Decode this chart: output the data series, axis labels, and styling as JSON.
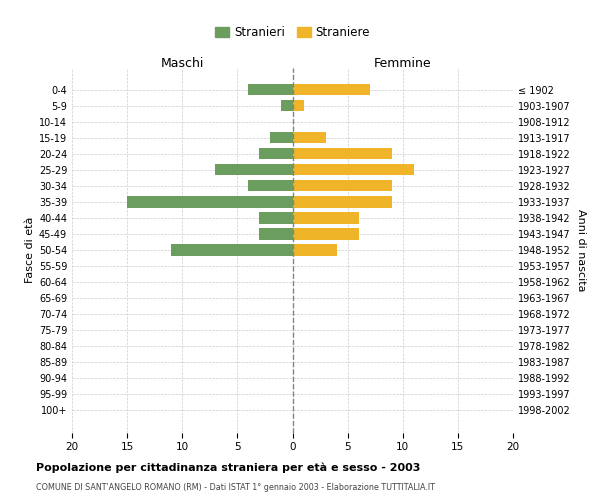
{
  "age_groups": [
    "0-4",
    "5-9",
    "10-14",
    "15-19",
    "20-24",
    "25-29",
    "30-34",
    "35-39",
    "40-44",
    "45-49",
    "50-54",
    "55-59",
    "60-64",
    "65-69",
    "70-74",
    "75-79",
    "80-84",
    "85-89",
    "90-94",
    "95-99",
    "100+"
  ],
  "birth_years": [
    "1998-2002",
    "1993-1997",
    "1988-1992",
    "1983-1987",
    "1978-1982",
    "1973-1977",
    "1968-1972",
    "1963-1967",
    "1958-1962",
    "1953-1957",
    "1948-1952",
    "1943-1947",
    "1938-1942",
    "1933-1937",
    "1928-1932",
    "1923-1927",
    "1918-1922",
    "1913-1917",
    "1908-1912",
    "1903-1907",
    "≤ 1902"
  ],
  "males": [
    4,
    1,
    0,
    2,
    3,
    7,
    4,
    15,
    3,
    3,
    11,
    0,
    0,
    0,
    0,
    0,
    0,
    0,
    0,
    0,
    0
  ],
  "females": [
    7,
    1,
    0,
    3,
    9,
    11,
    9,
    9,
    6,
    6,
    4,
    0,
    0,
    0,
    0,
    0,
    0,
    0,
    0,
    0,
    0
  ],
  "male_color": "#6b9e5e",
  "female_color": "#f0b429",
  "title1": "Popolazione per cittadinanza straniera per età e sesso - 2003",
  "title2": "COMUNE DI SANT'ANGELO ROMANO (RM) - Dati ISTAT 1° gennaio 2003 - Elaborazione TUTTITALIA.IT",
  "xlabel_left": "Maschi",
  "xlabel_right": "Femmine",
  "ylabel_left": "Fasce di età",
  "ylabel_right": "Anni di nascita",
  "legend_male": "Stranieri",
  "legend_female": "Straniere",
  "xlim": 20,
  "background_color": "#ffffff",
  "grid_color": "#cccccc",
  "center_line_color": "#888866"
}
